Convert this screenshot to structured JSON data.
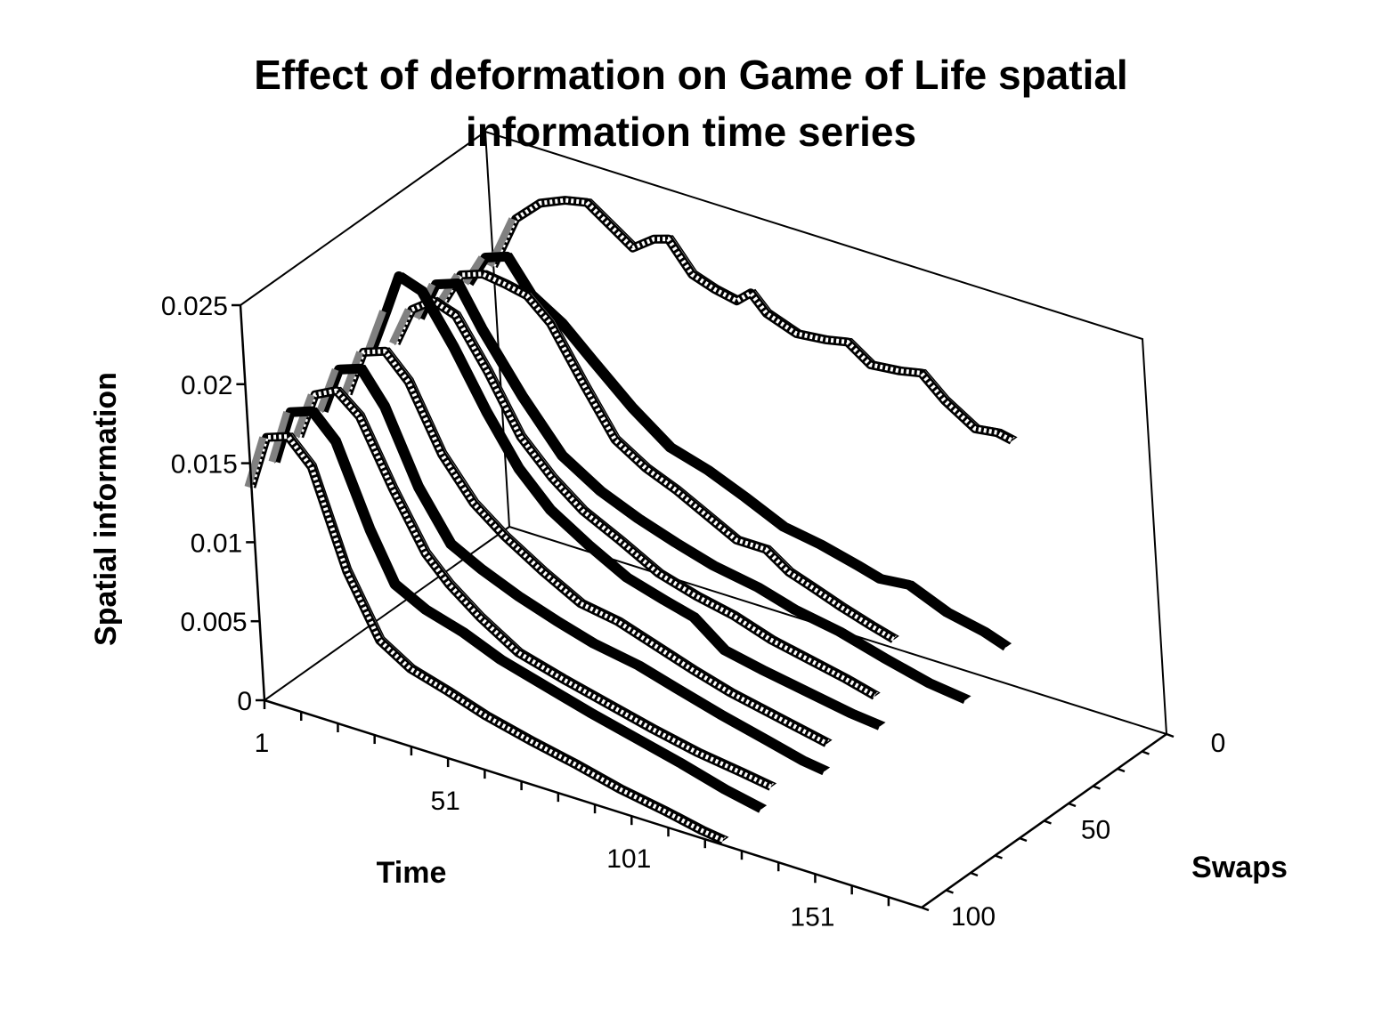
{
  "chart_data": {
    "type": "line",
    "subtype": "3d-line-ribbons",
    "title": "Effect of deformation on Game of Life spatial information time series",
    "title_lines": [
      "Effect of deformation on Game of Life spatial",
      "information time series"
    ],
    "xlabel": "Time",
    "ylabel": "Spatial information",
    "zlabel": "Swaps",
    "x_tick_labels": [
      "1",
      "51",
      "101",
      "151"
    ],
    "y_tick_labels": [
      "0",
      "0.005",
      "0.01",
      "0.015",
      "0.02",
      "0.025"
    ],
    "z_tick_labels": [
      "0",
      "50",
      "100"
    ],
    "xlim": [
      1,
      180
    ],
    "ylim": [
      0,
      0.025
    ],
    "zlim": [
      0,
      100
    ],
    "grid": false,
    "legend": "none",
    "series": [
      {
        "name": "0",
        "style": "hollow",
        "points": [
          [
            1,
            0.0165
          ],
          [
            8,
            0.02
          ],
          [
            15,
            0.0215
          ],
          [
            22,
            0.0222
          ],
          [
            28,
            0.0225
          ],
          [
            34,
            0.0215
          ],
          [
            40,
            0.0205
          ],
          [
            46,
            0.0215
          ],
          [
            50,
            0.0218
          ],
          [
            56,
            0.02
          ],
          [
            62,
            0.0195
          ],
          [
            68,
            0.0192
          ],
          [
            72,
            0.02
          ],
          [
            76,
            0.019
          ],
          [
            84,
            0.0183
          ],
          [
            92,
            0.0185
          ],
          [
            98,
            0.0188
          ],
          [
            104,
            0.0178
          ],
          [
            112,
            0.018
          ],
          [
            118,
            0.0183
          ],
          [
            124,
            0.017
          ],
          [
            132,
            0.0158
          ],
          [
            138,
            0.016
          ],
          [
            142,
            0.0158
          ]
        ]
      },
      {
        "name": "10",
        "style": "solid",
        "points": [
          [
            1,
            0.0165
          ],
          [
            6,
            0.0185
          ],
          [
            12,
            0.019
          ],
          [
            18,
            0.017
          ],
          [
            26,
            0.0158
          ],
          [
            34,
            0.014
          ],
          [
            44,
            0.0118
          ],
          [
            54,
            0.01
          ],
          [
            64,
            0.0093
          ],
          [
            74,
            0.0083
          ],
          [
            84,
            0.0072
          ],
          [
            94,
            0.0068
          ],
          [
            104,
            0.0062
          ],
          [
            110,
            0.0058
          ],
          [
            118,
            0.006
          ],
          [
            128,
            0.005
          ],
          [
            138,
            0.0045
          ],
          [
            144,
            0.004
          ]
        ]
      },
      {
        "name": "20",
        "style": "hollow",
        "points": [
          [
            1,
            0.0165
          ],
          [
            6,
            0.0185
          ],
          [
            12,
            0.019
          ],
          [
            18,
            0.0188
          ],
          [
            24,
            0.0185
          ],
          [
            30,
            0.0172
          ],
          [
            38,
            0.014
          ],
          [
            46,
            0.011
          ],
          [
            54,
            0.0098
          ],
          [
            62,
            0.009
          ],
          [
            70,
            0.008
          ],
          [
            78,
            0.007
          ],
          [
            86,
            0.007
          ],
          [
            92,
            0.006
          ],
          [
            98,
            0.0055
          ],
          [
            106,
            0.0048
          ],
          [
            114,
            0.0042
          ],
          [
            120,
            0.0038
          ]
        ]
      },
      {
        "name": "30",
        "style": "solid",
        "points": [
          [
            1,
            0.0165
          ],
          [
            6,
            0.019
          ],
          [
            12,
            0.0195
          ],
          [
            18,
            0.017
          ],
          [
            28,
            0.0135
          ],
          [
            38,
            0.0105
          ],
          [
            48,
            0.009
          ],
          [
            58,
            0.008
          ],
          [
            68,
            0.0072
          ],
          [
            78,
            0.0065
          ],
          [
            90,
            0.006
          ],
          [
            100,
            0.0053
          ],
          [
            112,
            0.0048
          ],
          [
            124,
            0.004
          ],
          [
            136,
            0.0033
          ],
          [
            146,
            0.003
          ]
        ]
      },
      {
        "name": "40",
        "style": "hollow",
        "points": [
          [
            1,
            0.016
          ],
          [
            6,
            0.0185
          ],
          [
            12,
            0.0195
          ],
          [
            18,
            0.019
          ],
          [
            26,
            0.016
          ],
          [
            34,
            0.0125
          ],
          [
            42,
            0.0105
          ],
          [
            50,
            0.009
          ],
          [
            60,
            0.0078
          ],
          [
            70,
            0.0065
          ],
          [
            80,
            0.0058
          ],
          [
            90,
            0.0053
          ],
          [
            100,
            0.0045
          ],
          [
            110,
            0.004
          ],
          [
            120,
            0.0035
          ],
          [
            128,
            0.003
          ]
        ]
      },
      {
        "name": "50",
        "style": "solid",
        "points": [
          [
            1,
            0.0165
          ],
          [
            6,
            0.0195
          ],
          [
            10,
            0.022
          ],
          [
            16,
            0.0215
          ],
          [
            24,
            0.0185
          ],
          [
            32,
            0.015
          ],
          [
            40,
            0.012
          ],
          [
            48,
            0.01
          ],
          [
            58,
            0.0085
          ],
          [
            68,
            0.0072
          ],
          [
            78,
            0.0065
          ],
          [
            86,
            0.006
          ],
          [
            94,
            0.0045
          ],
          [
            104,
            0.004
          ],
          [
            116,
            0.0035
          ],
          [
            128,
            0.003
          ],
          [
            136,
            0.0028
          ]
        ]
      },
      {
        "name": "60",
        "style": "hollow",
        "points": [
          [
            1,
            0.015
          ],
          [
            6,
            0.018
          ],
          [
            12,
            0.0185
          ],
          [
            18,
            0.017
          ],
          [
            26,
            0.013
          ],
          [
            34,
            0.0105
          ],
          [
            42,
            0.009
          ],
          [
            52,
            0.0075
          ],
          [
            62,
            0.0062
          ],
          [
            72,
            0.0058
          ],
          [
            82,
            0.005
          ],
          [
            92,
            0.0042
          ],
          [
            102,
            0.0035
          ],
          [
            112,
            0.003
          ],
          [
            122,
            0.0025
          ],
          [
            128,
            0.0022
          ]
        ]
      },
      {
        "name": "70",
        "style": "solid",
        "points": [
          [
            1,
            0.015
          ],
          [
            6,
            0.018
          ],
          [
            12,
            0.0185
          ],
          [
            18,
            0.0165
          ],
          [
            26,
            0.012
          ],
          [
            34,
            0.009
          ],
          [
            42,
            0.008
          ],
          [
            52,
            0.007
          ],
          [
            62,
            0.0062
          ],
          [
            72,
            0.0055
          ],
          [
            84,
            0.005
          ],
          [
            94,
            0.0043
          ],
          [
            106,
            0.0035
          ],
          [
            118,
            0.0028
          ],
          [
            128,
            0.0022
          ],
          [
            134,
            0.002
          ]
        ]
      },
      {
        "name": "80",
        "style": "hollow",
        "points": [
          [
            1,
            0.0145
          ],
          [
            6,
            0.0175
          ],
          [
            12,
            0.0182
          ],
          [
            18,
            0.017
          ],
          [
            26,
            0.013
          ],
          [
            34,
            0.0095
          ],
          [
            40,
            0.008
          ],
          [
            48,
            0.0065
          ],
          [
            58,
            0.005
          ],
          [
            70,
            0.0042
          ],
          [
            82,
            0.0035
          ],
          [
            94,
            0.0028
          ],
          [
            106,
            0.0022
          ],
          [
            118,
            0.0018
          ],
          [
            126,
            0.0015
          ]
        ]
      },
      {
        "name": "90",
        "style": "solid",
        "points": [
          [
            1,
            0.014
          ],
          [
            6,
            0.0175
          ],
          [
            12,
            0.018
          ],
          [
            18,
            0.0165
          ],
          [
            26,
            0.0115
          ],
          [
            32,
            0.0085
          ],
          [
            40,
            0.0075
          ],
          [
            50,
            0.0068
          ],
          [
            60,
            0.0058
          ],
          [
            72,
            0.005
          ],
          [
            84,
            0.0042
          ],
          [
            96,
            0.0035
          ],
          [
            108,
            0.0028
          ],
          [
            120,
            0.002
          ],
          [
            130,
            0.0015
          ]
        ]
      },
      {
        "name": "100",
        "style": "hollow",
        "points": [
          [
            1,
            0.0135
          ],
          [
            6,
            0.017
          ],
          [
            12,
            0.0175
          ],
          [
            18,
            0.016
          ],
          [
            26,
            0.01
          ],
          [
            34,
            0.0062
          ],
          [
            42,
            0.005
          ],
          [
            52,
            0.0043
          ],
          [
            62,
            0.0035
          ],
          [
            74,
            0.0028
          ],
          [
            86,
            0.0022
          ],
          [
            98,
            0.0015
          ],
          [
            110,
            0.001
          ],
          [
            120,
            0.0005
          ],
          [
            126,
            0.0003
          ]
        ]
      }
    ],
    "colors": {
      "solid": "#000000",
      "hollow_fill": "#ffffff",
      "hollow_stroke": "#000000",
      "top_face": "#808080",
      "axes": "#000000",
      "background": "#ffffff"
    }
  }
}
